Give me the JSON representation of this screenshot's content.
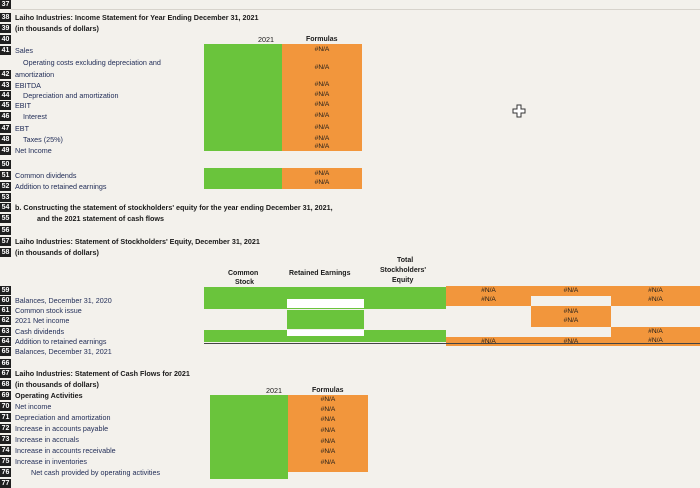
{
  "sheet": {
    "topline": "37",
    "title": "Laiho Industries: Income Statement for Year Ending December 31, 2021",
    "subtitle": "(in thousands of dollars)",
    "col_year": "2021",
    "col_formulas": "Formulas",
    "rows_num": [
      "38",
      "39",
      "40",
      "41",
      "",
      "42",
      "43",
      "44",
      "45",
      "46",
      "47",
      "48",
      "49",
      "50",
      "51",
      "52",
      "53",
      "54",
      "55",
      "56",
      "57",
      "58",
      "59",
      "60",
      "61",
      "62",
      "63",
      "64",
      "65",
      "66",
      "67",
      "68",
      "69",
      "70",
      "71",
      "72",
      "73",
      "74",
      "75",
      "76"
    ],
    "income": [
      {
        "label": "Sales",
        "formula": "#N/A"
      },
      {
        "label": "Operating costs excluding depreciation and",
        "label2": "amortization",
        "formula": "#N/A"
      },
      {
        "label": "EBITDA",
        "formula": "#N/A"
      },
      {
        "label": "Depreciation and amortization",
        "formula": "#N/A"
      },
      {
        "label": "EBIT",
        "formula": "#N/A"
      },
      {
        "label": "Interest",
        "formula": "#N/A"
      },
      {
        "label": "EBT",
        "formula": "#N/A"
      },
      {
        "label": "Taxes (25%)",
        "formula": "#N/A"
      },
      {
        "label": "Net Income",
        "formula": "#N/A"
      }
    ],
    "dividends": [
      {
        "label": "Common dividends",
        "formula": "#N/A"
      },
      {
        "label": "Addition to retained earnings",
        "formula": "#N/A"
      }
    ],
    "part_b": "b.  Constructing the statement of stockholders' equity for the year ending December 31, 2021,",
    "part_b2": "and the 2021 statement of cash flows",
    "equity_title": "Laiho Industries: Statement of Stockholders' Equity, December 31, 2021",
    "equity_subtitle": "(in thousands of dollars)",
    "equity_cols": {
      "common": "Common",
      "common2": "Stock",
      "retained": "Retained Earnings",
      "total": "Total",
      "total2": "Stockholders'",
      "total3": "Equity"
    },
    "equity_rows": [
      "Balances, December 31, 2020",
      "Common stock issue",
      "2021 Net income",
      "Cash dividends",
      "Addition to retained earnings",
      "Balances, December 31, 2021"
    ],
    "equity_na": "#N/A",
    "cf_title": "Laiho Industries: Statement of Cash Flows for 2021",
    "cf_subtitle": "(in thousands of dollars)",
    "cf_section": "Operating Activities",
    "cf_year": "2021",
    "cf_formulas": "Formulas",
    "cf_rows": [
      "Net income",
      "Depreciation and amortization",
      "Increase in accounts payable",
      "Increase in accruals",
      "Increase in accounts receivable",
      "Increase in inventories",
      "Net cash provided by operating activities"
    ],
    "cf_na": "#N/A"
  }
}
